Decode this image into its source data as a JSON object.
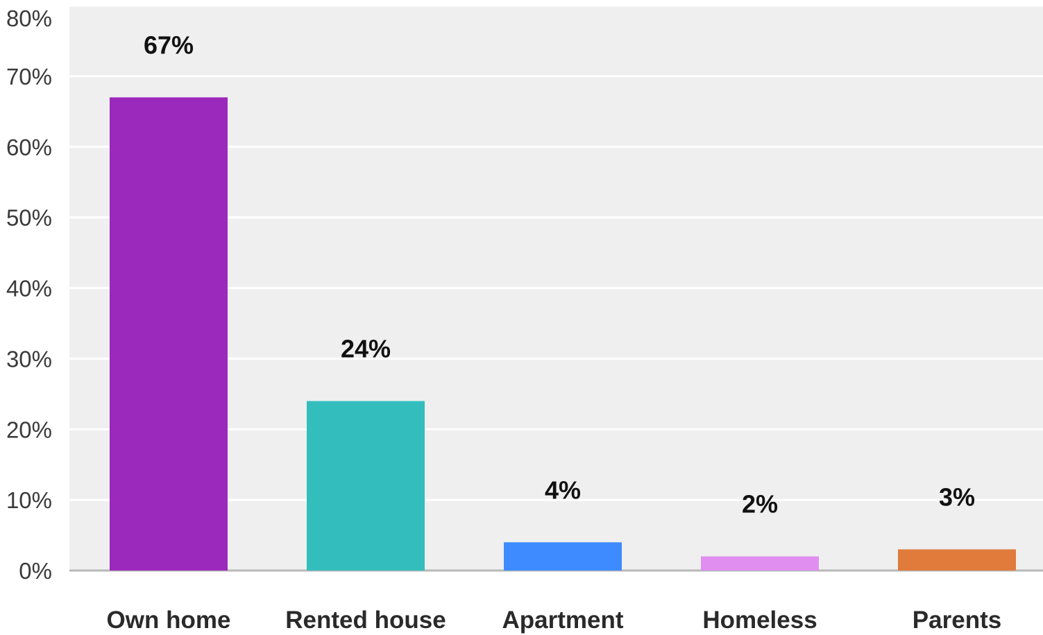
{
  "chart_data": {
    "type": "bar",
    "title": "",
    "xlabel": "",
    "ylabel": "",
    "categories": [
      "Own home",
      "Rented house",
      "Apartment",
      "Homeless",
      "Parents"
    ],
    "values": [
      67,
      24,
      4,
      2,
      3
    ],
    "data_labels": [
      "67%",
      "24%",
      "4%",
      "2%",
      "3%"
    ],
    "colors": [
      "#9b29bb",
      "#33bdbd",
      "#3d8bff",
      "#e08ef0",
      "#e07b3c"
    ],
    "ylim": [
      0,
      80
    ],
    "yticks": [
      0,
      10,
      20,
      30,
      40,
      50,
      60,
      70,
      80
    ],
    "ytick_labels": [
      "0%",
      "10%",
      "20%",
      "30%",
      "40%",
      "50%",
      "60%",
      "70%",
      "80%"
    ],
    "grid": true,
    "legend": false,
    "plot_background": "#efefef",
    "gridline_color": "#ffffff"
  }
}
